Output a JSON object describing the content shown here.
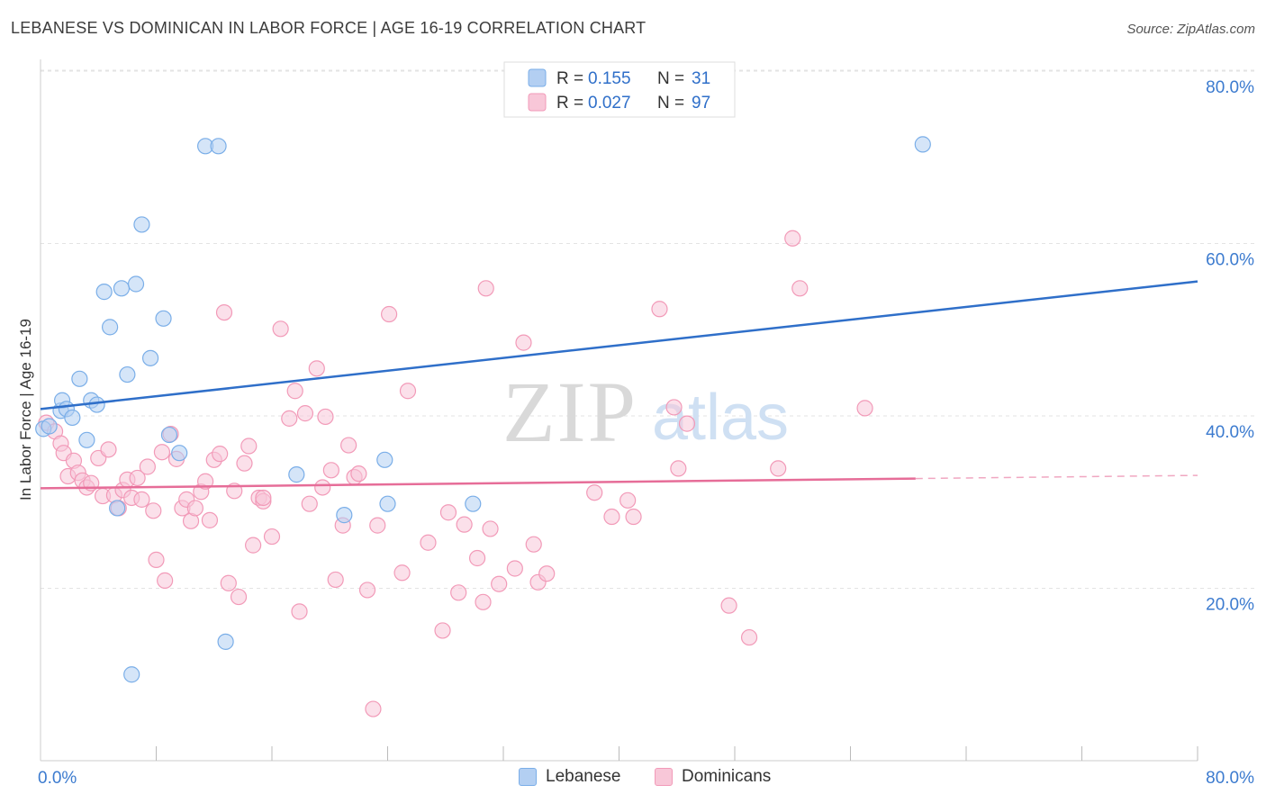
{
  "title": "LEBANESE VS DOMINICAN IN LABOR FORCE | AGE 16-19 CORRELATION CHART",
  "source": "Source: ZipAtlas.com",
  "watermark": {
    "left": "ZIP",
    "right": "atlas"
  },
  "chart_data": {
    "type": "scatter",
    "title": "LEBANESE VS DOMINICAN IN LABOR FORCE | AGE 16-19 CORRELATION CHART",
    "xlabel": "",
    "ylabel": "In Labor Force | Age 16-19",
    "xlim": [
      0,
      80
    ],
    "ylim": [
      0,
      82
    ],
    "x_tick_labels": [
      "0.0%",
      "80.0%"
    ],
    "y_ticks": [
      20,
      40,
      60,
      80
    ],
    "y_tick_labels": [
      "20.0%",
      "40.0%",
      "60.0%",
      "80.0%"
    ],
    "grid": true,
    "legend_position": "top-center",
    "stats_legend": [
      {
        "r_label": "R =",
        "r_value": "0.155",
        "n_label": "N =",
        "n_value": "31"
      },
      {
        "r_label": "R =",
        "r_value": "0.027",
        "n_label": "N =",
        "n_value": "97"
      }
    ],
    "series": [
      {
        "name": "Lebanese",
        "color": "#7aaee8",
        "fill": "#b3cff2",
        "line_color": "#2f6fc9",
        "trend": {
          "x": [
            0,
            80
          ],
          "y": [
            40.8,
            55.6
          ],
          "dashed_from": null
        },
        "points": [
          [
            0.2,
            38.5
          ],
          [
            0.6,
            38.8
          ],
          [
            1.4,
            40.6
          ],
          [
            1.5,
            41.8
          ],
          [
            1.8,
            40.8
          ],
          [
            2.2,
            39.8
          ],
          [
            2.7,
            44.3
          ],
          [
            3.2,
            37.2
          ],
          [
            3.5,
            41.8
          ],
          [
            3.9,
            41.3
          ],
          [
            4.4,
            54.4
          ],
          [
            4.8,
            50.3
          ],
          [
            5.3,
            29.3
          ],
          [
            5.6,
            54.8
          ],
          [
            6.0,
            44.8
          ],
          [
            6.3,
            10.0
          ],
          [
            6.6,
            55.3
          ],
          [
            7.0,
            62.2
          ],
          [
            7.6,
            46.7
          ],
          [
            8.5,
            51.3
          ],
          [
            8.9,
            37.8
          ],
          [
            9.6,
            35.7
          ],
          [
            11.4,
            71.3
          ],
          [
            12.3,
            71.3
          ],
          [
            12.8,
            13.8
          ],
          [
            17.7,
            33.2
          ],
          [
            21.0,
            28.5
          ],
          [
            23.8,
            34.9
          ],
          [
            24.0,
            29.8
          ],
          [
            29.9,
            29.8
          ],
          [
            61.0,
            71.5
          ]
        ]
      },
      {
        "name": "Dominicans",
        "color": "#f29ab8",
        "fill": "#f8c7d8",
        "line_color": "#e66d98",
        "trend": {
          "x": [
            0,
            80
          ],
          "y": [
            31.6,
            33.1
          ],
          "dashed_from": 60.5
        },
        "points": [
          [
            0.4,
            39.2
          ],
          [
            1.0,
            38.2
          ],
          [
            1.4,
            36.8
          ],
          [
            1.6,
            35.7
          ],
          [
            1.9,
            33.0
          ],
          [
            2.3,
            34.8
          ],
          [
            2.6,
            33.4
          ],
          [
            2.9,
            32.5
          ],
          [
            3.2,
            31.7
          ],
          [
            3.5,
            32.2
          ],
          [
            4.0,
            35.1
          ],
          [
            4.3,
            30.7
          ],
          [
            4.7,
            36.1
          ],
          [
            5.1,
            30.8
          ],
          [
            5.4,
            29.3
          ],
          [
            5.7,
            31.4
          ],
          [
            6.0,
            32.6
          ],
          [
            6.3,
            30.5
          ],
          [
            6.7,
            32.8
          ],
          [
            7.0,
            30.3
          ],
          [
            7.4,
            34.1
          ],
          [
            7.8,
            29.0
          ],
          [
            8.0,
            23.3
          ],
          [
            8.4,
            35.8
          ],
          [
            8.6,
            20.9
          ],
          [
            9.0,
            37.9
          ],
          [
            9.4,
            35.0
          ],
          [
            9.8,
            29.3
          ],
          [
            10.1,
            30.3
          ],
          [
            10.4,
            27.8
          ],
          [
            10.7,
            29.3
          ],
          [
            11.1,
            31.2
          ],
          [
            11.4,
            32.4
          ],
          [
            11.7,
            27.9
          ],
          [
            12.0,
            34.9
          ],
          [
            12.4,
            35.6
          ],
          [
            12.7,
            52.0
          ],
          [
            13.0,
            20.6
          ],
          [
            13.4,
            31.3
          ],
          [
            13.7,
            19.0
          ],
          [
            14.1,
            34.5
          ],
          [
            14.4,
            36.5
          ],
          [
            14.7,
            25.0
          ],
          [
            15.1,
            30.5
          ],
          [
            15.4,
            30.1
          ],
          [
            16.0,
            26.0
          ],
          [
            16.6,
            50.1
          ],
          [
            17.2,
            39.7
          ],
          [
            17.6,
            42.9
          ],
          [
            17.9,
            17.3
          ],
          [
            18.3,
            40.3
          ],
          [
            18.6,
            29.8
          ],
          [
            19.1,
            45.5
          ],
          [
            19.5,
            31.7
          ],
          [
            19.7,
            39.9
          ],
          [
            20.1,
            33.7
          ],
          [
            20.4,
            21.0
          ],
          [
            20.9,
            27.3
          ],
          [
            21.3,
            36.6
          ],
          [
            21.7,
            32.9
          ],
          [
            22.0,
            33.3
          ],
          [
            22.6,
            19.8
          ],
          [
            23.3,
            27.3
          ],
          [
            24.1,
            51.8
          ],
          [
            25.0,
            21.8
          ],
          [
            25.4,
            42.9
          ],
          [
            26.8,
            25.3
          ],
          [
            27.8,
            15.1
          ],
          [
            28.2,
            28.8
          ],
          [
            28.9,
            19.5
          ],
          [
            29.3,
            27.4
          ],
          [
            30.2,
            23.5
          ],
          [
            30.6,
            18.4
          ],
          [
            30.8,
            54.8
          ],
          [
            31.1,
            26.9
          ],
          [
            31.7,
            20.5
          ],
          [
            32.8,
            22.3
          ],
          [
            33.4,
            48.5
          ],
          [
            34.1,
            25.1
          ],
          [
            34.4,
            20.7
          ],
          [
            35.0,
            21.7
          ],
          [
            38.3,
            31.1
          ],
          [
            39.5,
            28.3
          ],
          [
            40.6,
            30.2
          ],
          [
            41.0,
            28.3
          ],
          [
            42.8,
            52.4
          ],
          [
            43.8,
            41.0
          ],
          [
            44.1,
            33.9
          ],
          [
            44.7,
            39.1
          ],
          [
            47.6,
            18.0
          ],
          [
            49.0,
            14.3
          ],
          [
            51.0,
            33.9
          ],
          [
            52.0,
            60.6
          ],
          [
            52.5,
            54.8
          ],
          [
            57.0,
            40.9
          ],
          [
            23.0,
            6.0
          ],
          [
            15.4,
            30.5
          ]
        ]
      }
    ]
  }
}
